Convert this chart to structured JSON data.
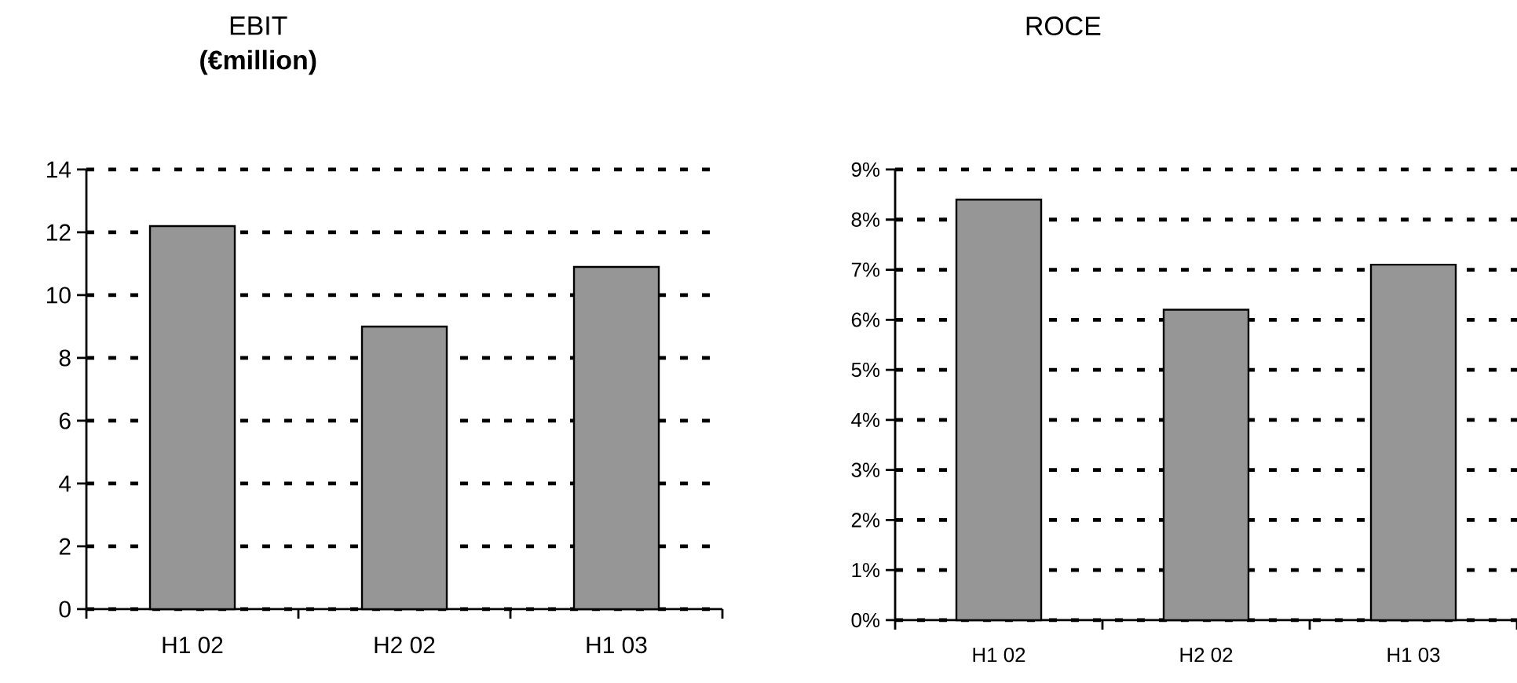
{
  "chart_data": [
    {
      "type": "bar",
      "title": "EBIT",
      "subtitle": "(€million)",
      "categories": [
        "H1 02",
        "H2 02",
        "H1 03"
      ],
      "values": [
        12.2,
        9.0,
        10.9
      ],
      "color": "#969696",
      "ylim": [
        0,
        14
      ],
      "yticks": [
        0,
        2,
        4,
        6,
        8,
        10,
        12,
        14
      ],
      "grid": "y"
    },
    {
      "type": "bar",
      "title": "ROCE",
      "categories": [
        "H1 02",
        "H2 02",
        "H1 03"
      ],
      "values": [
        8.4,
        6.2,
        7.1
      ],
      "color": "#969696",
      "ylim": [
        0,
        9
      ],
      "yticks": [
        {
          "value": 0,
          "label": "0%"
        },
        {
          "value": 1,
          "label": "1%"
        },
        {
          "value": 2,
          "label": "2%"
        },
        {
          "value": 3,
          "label": "3%"
        },
        {
          "value": 4,
          "label": "4%"
        },
        {
          "value": 5,
          "label": "5%"
        },
        {
          "value": 6,
          "label": "6%"
        },
        {
          "value": 7,
          "label": "7%"
        },
        {
          "value": 8,
          "label": "8%"
        },
        {
          "value": 9,
          "label": "9%"
        }
      ],
      "grid": "y"
    }
  ]
}
